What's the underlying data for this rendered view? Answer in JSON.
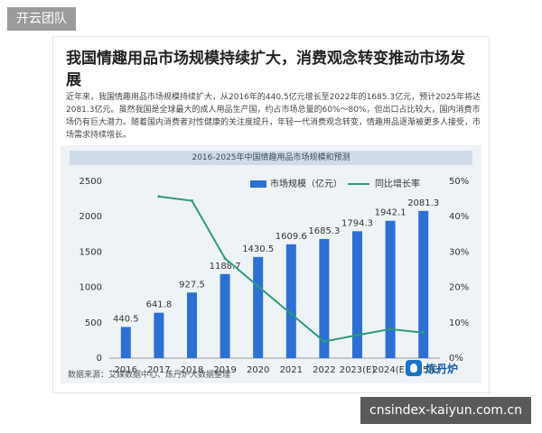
{
  "site": {
    "badge": "开云团队",
    "url": "cnsindex-kaiyun.com.cn"
  },
  "article": {
    "title": "我国情趣用品市场规模持续扩大，消费观念转变推动市场发展",
    "body": "近年来，我国情趣用品市场规模持续扩大，从2016年的440.5亿元增长至2022年的1685.3亿元，预计2025年将达2081.3亿元。虽然我国是全球最大的成人用品生产国，约占市场总量的60%～80%，但出口占比较大，国内消费市场仍有巨大潜力。随着国内消费者对性健康的关注度提升，年轻一代消费观念转变，情趣用品逐渐被更多人接受，市场需求持续增长。"
  },
  "chart_data": {
    "type": "bar",
    "title": "2016-2025年中国情趣用品市场规模和预测",
    "categories": [
      "2016",
      "2017",
      "2018",
      "2019",
      "2020",
      "2021",
      "2022",
      "2023(E)",
      "2024(E)",
      "2025(E)"
    ],
    "series": [
      {
        "name": "市场规模（亿元）",
        "type": "bar",
        "axis": "left",
        "values": [
          440.5,
          641.8,
          927.5,
          1188.7,
          1430.5,
          1609.6,
          1685.3,
          1794.3,
          1942.1,
          2081.3
        ],
        "labels": [
          "440.5",
          "641.8",
          "927.5",
          "1188.7",
          "1430.5",
          "1609.6",
          "1685.3",
          "1794.3",
          "1942.1",
          "2081.3"
        ]
      },
      {
        "name": "同比增长率",
        "type": "line",
        "axis": "right",
        "values": [
          null,
          45.7,
          44.5,
          28.2,
          20.3,
          12.5,
          4.7,
          6.5,
          8.2,
          7.2
        ]
      }
    ],
    "ylim_left": [
      0,
      2500
    ],
    "yticks_left": [
      "0",
      "500",
      "1000",
      "1500",
      "2000",
      "2500"
    ],
    "ylim_right": [
      0,
      50
    ],
    "yticks_right": [
      "0%",
      "10%",
      "20%",
      "30%",
      "40%",
      "50%"
    ],
    "grid": false,
    "legend": "top-right",
    "colors": {
      "bar": "#2c6fd6",
      "line": "#2e9a7a"
    }
  },
  "footer": {
    "source": "数据来源：艾媒数据中心、炼丹炉大数据整理",
    "brand": "炼丹炉"
  }
}
